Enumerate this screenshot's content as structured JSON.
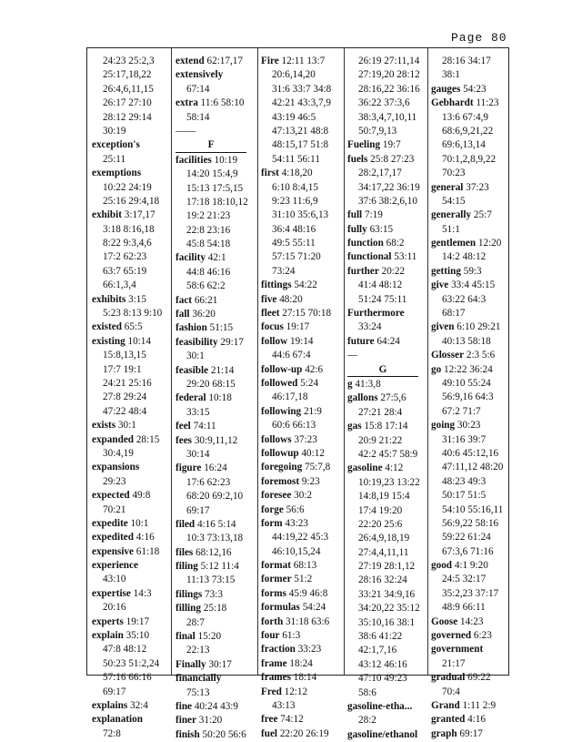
{
  "page_label": "Page 80",
  "columns": [
    [
      {
        "refs": "24:23 25:2,3"
      },
      {
        "refs": "25:17,18,22"
      },
      {
        "refs": "26:4,6,11,15"
      },
      {
        "refs": "26:17 27:10"
      },
      {
        "refs": "28:12 29:14"
      },
      {
        "refs": "30:19"
      },
      {
        "term": "exception's",
        "refs": ""
      },
      {
        "refs": "25:11"
      },
      {
        "term": "exemptions",
        "refs": ""
      },
      {
        "refs": "10:22 24:19"
      },
      {
        "refs": "25:16 29:4,18"
      },
      {
        "term": "exhibit",
        "refs": "3:17,17"
      },
      {
        "refs": "3:18 8:16,18"
      },
      {
        "refs": "8:22 9:3,4,6"
      },
      {
        "refs": "17:2 62:23"
      },
      {
        "refs": "63:7 65:19"
      },
      {
        "refs": "66:1,3,4"
      },
      {
        "term": "exhibits",
        "refs": "3:15"
      },
      {
        "refs": "5:23 8:13 9:10"
      },
      {
        "term": "existed",
        "refs": "65:5"
      },
      {
        "term": "existing",
        "refs": "10:14"
      },
      {
        "refs": "15:8,13,15"
      },
      {
        "refs": "17:7 19:1"
      },
      {
        "refs": "24:21 25:16"
      },
      {
        "refs": "27:8 29:24"
      },
      {
        "refs": "47:22 48:4"
      },
      {
        "term": "exists",
        "refs": "30:1"
      },
      {
        "term": "expanded",
        "refs": "28:15"
      },
      {
        "refs": "30:4,19"
      },
      {
        "term": "expansions",
        "refs": ""
      },
      {
        "refs": "29:23"
      },
      {
        "term": "expected",
        "refs": "49:8"
      },
      {
        "refs": "70:21"
      },
      {
        "term": "expedite",
        "refs": "10:1"
      },
      {
        "term": "expedited",
        "refs": "4:16"
      },
      {
        "term": "expensive",
        "refs": "61:18"
      },
      {
        "term": "experience",
        "refs": ""
      },
      {
        "refs": "43:10"
      },
      {
        "term": "expertise",
        "refs": "14:3"
      },
      {
        "refs": "20:16"
      },
      {
        "term": "experts",
        "refs": "19:17"
      },
      {
        "term": "explain",
        "refs": "35:10"
      },
      {
        "refs": "47:8 48:12"
      },
      {
        "refs": "50:23 51:2,24"
      },
      {
        "refs": "57:16 66:16"
      },
      {
        "refs": "69:17"
      },
      {
        "term": "explains",
        "refs": "32:4"
      },
      {
        "term": "explanation",
        "refs": ""
      },
      {
        "refs": "72:8"
      }
    ],
    [
      {
        "term": "extend",
        "refs": "62:17,17"
      },
      {
        "term": "extensively",
        "refs": ""
      },
      {
        "refs": "67:14"
      },
      {
        "term": "extra",
        "refs": "11:6 58:10"
      },
      {
        "refs": "58:14"
      },
      {
        "rule": "——"
      },
      {
        "letter": "F"
      },
      {
        "term": "facilities",
        "refs": "10:19"
      },
      {
        "refs": "14:20 15:4,9"
      },
      {
        "refs": "15:13 17:5,15"
      },
      {
        "refs": "17:18 18:10,12"
      },
      {
        "refs": "19:2 21:23"
      },
      {
        "refs": "22:8 23:16"
      },
      {
        "refs": "45:8 54:18"
      },
      {
        "term": "facility",
        "refs": "42:1"
      },
      {
        "refs": "44:8 46:16"
      },
      {
        "refs": "58:6 62:2"
      },
      {
        "term": "fact",
        "refs": "66:21"
      },
      {
        "term": "fall",
        "refs": "36:20"
      },
      {
        "term": "fashion",
        "refs": "51:15"
      },
      {
        "term": "feasibility",
        "refs": "29:17"
      },
      {
        "refs": "30:1"
      },
      {
        "term": "feasible",
        "refs": "21:14"
      },
      {
        "refs": "29:20 68:15"
      },
      {
        "term": "federal",
        "refs": "10:18"
      },
      {
        "refs": "33:15"
      },
      {
        "term": "feel",
        "refs": "74:11"
      },
      {
        "term": "fees",
        "refs": "30:9,11,12"
      },
      {
        "refs": "30:14"
      },
      {
        "term": "figure",
        "refs": "16:24"
      },
      {
        "refs": "17:6 62:23"
      },
      {
        "refs": "68:20 69:2,10"
      },
      {
        "refs": "69:17"
      },
      {
        "term": "filed",
        "refs": "4:16 5:14"
      },
      {
        "refs": "10:3 73:13,18"
      },
      {
        "term": "files",
        "refs": "68:12,16"
      },
      {
        "term": "filing",
        "refs": "5:12 11:4"
      },
      {
        "refs": "11:13 73:15"
      },
      {
        "term": "filings",
        "refs": "73:3"
      },
      {
        "term": "filling",
        "refs": "25:18"
      },
      {
        "refs": "28:7"
      },
      {
        "term": "final",
        "refs": "15:20"
      },
      {
        "refs": "22:13"
      },
      {
        "term": "Finally",
        "refs": "30:17"
      },
      {
        "term": "financially",
        "refs": ""
      },
      {
        "refs": "75:13"
      },
      {
        "term": "fine",
        "refs": "40:24 43:9"
      },
      {
        "term": "finer",
        "refs": "31:20"
      },
      {
        "term": "finish",
        "refs": "50:20 56:6"
      }
    ],
    [
      {
        "term": "Fire",
        "refs": "12:11 13:7"
      },
      {
        "refs": "20:6,14,20"
      },
      {
        "refs": "31:6 33:7 34:8"
      },
      {
        "refs": "42:21 43:3,7,9"
      },
      {
        "refs": "43:19 46:5"
      },
      {
        "refs": "47:13,21 48:8"
      },
      {
        "refs": "48:15,17 51:8"
      },
      {
        "refs": "54:11 56:11"
      },
      {
        "term": "first",
        "refs": "4:18,20"
      },
      {
        "refs": "6:10 8:4,15"
      },
      {
        "refs": "9:23 11:6,9"
      },
      {
        "refs": "31:10 35:6,13"
      },
      {
        "refs": "36:4 48:16"
      },
      {
        "refs": "49:5 55:11"
      },
      {
        "refs": "57:15 71:20"
      },
      {
        "refs": "73:24"
      },
      {
        "term": "fittings",
        "refs": "54:22"
      },
      {
        "term": "five",
        "refs": "48:20"
      },
      {
        "term": "fleet",
        "refs": "27:15 70:18"
      },
      {
        "term": "focus",
        "refs": "19:17"
      },
      {
        "term": "follow",
        "refs": "19:14"
      },
      {
        "refs": "44:6 67:4"
      },
      {
        "term": "follow-up",
        "refs": "42:6"
      },
      {
        "term": "followed",
        "refs": "5:24"
      },
      {
        "refs": "46:17,18"
      },
      {
        "term": "following",
        "refs": "21:9"
      },
      {
        "refs": "60:6 66:13"
      },
      {
        "term": "follows",
        "refs": "37:23"
      },
      {
        "term": "followup",
        "refs": "40:12"
      },
      {
        "term": "foregoing",
        "refs": "75:7,8"
      },
      {
        "term": "foremost",
        "refs": "9:23"
      },
      {
        "term": "foresee",
        "refs": "30:2"
      },
      {
        "term": "forge",
        "refs": "56:6"
      },
      {
        "term": "form",
        "refs": "43:23"
      },
      {
        "refs": "44:19,22 45:3"
      },
      {
        "refs": "46:10,15,24"
      },
      {
        "term": "format",
        "refs": "68:13"
      },
      {
        "term": "former",
        "refs": "51:2"
      },
      {
        "term": "forms",
        "refs": "45:9 46:8"
      },
      {
        "term": "formulas",
        "refs": "54:24"
      },
      {
        "term": "forth",
        "refs": "31:18 63:6"
      },
      {
        "term": "four",
        "refs": "61:3"
      },
      {
        "term": "fraction",
        "refs": "33:23"
      },
      {
        "term": "frame",
        "refs": "18:24"
      },
      {
        "term": "frames",
        "refs": "18:14"
      },
      {
        "term": "Fred",
        "refs": "12:12"
      },
      {
        "refs": "43:13"
      },
      {
        "term": "free",
        "refs": "74:12"
      },
      {
        "term": "fuel",
        "refs": "22:20 26:19"
      }
    ],
    [
      {
        "refs": "26:19 27:11,14"
      },
      {
        "refs": "27:19,20 28:12"
      },
      {
        "refs": "28:16,22 36:16"
      },
      {
        "refs": "36:22 37:3,6"
      },
      {
        "refs": "38:3,4,7,10,11"
      },
      {
        "refs": "50:7,9,13"
      },
      {
        "term": "Fueling",
        "refs": "19:7"
      },
      {
        "term": "fuels",
        "refs": "25:8 27:23"
      },
      {
        "refs": "28:2,17,17"
      },
      {
        "refs": "34:17,22 36:19"
      },
      {
        "refs": "37:6 38:2,6,10"
      },
      {
        "term": "full",
        "refs": "7:19"
      },
      {
        "term": "fully",
        "refs": "63:15"
      },
      {
        "term": "function",
        "refs": "68:2"
      },
      {
        "term": "functional",
        "refs": "53:11"
      },
      {
        "term": "further",
        "refs": "20:22"
      },
      {
        "refs": "41:4 48:12"
      },
      {
        "refs": "51:24 75:11"
      },
      {
        "term": "Furthermore",
        "refs": ""
      },
      {
        "refs": "33:24"
      },
      {
        "term": "future",
        "refs": "64:24"
      },
      {
        "rule": "—"
      },
      {
        "letter": "G"
      },
      {
        "term": "g",
        "refs": "41:3,8"
      },
      {
        "term": "gallons",
        "refs": "27:5,6"
      },
      {
        "refs": "27:21 28:4"
      },
      {
        "term": "gas",
        "refs": "15:8 17:14"
      },
      {
        "refs": "20:9 21:22"
      },
      {
        "refs": "42:2 45:7 58:9"
      },
      {
        "term": "gasoline",
        "refs": "4:12"
      },
      {
        "refs": "10:19,23 13:22"
      },
      {
        "refs": "14:8,19 15:4"
      },
      {
        "refs": "17:4 19:20"
      },
      {
        "refs": "22:20 25:6"
      },
      {
        "refs": "26:4,9,18,19"
      },
      {
        "refs": "27:4,4,11,11"
      },
      {
        "refs": "27:19 28:1,12"
      },
      {
        "refs": "28:16 32:24"
      },
      {
        "refs": "33:21 34:9,16"
      },
      {
        "refs": "34:20,22 35:12"
      },
      {
        "refs": "35:10,16 38:1"
      },
      {
        "refs": "38:6 41:22"
      },
      {
        "refs": "42:1,7,16"
      },
      {
        "refs": "43:12 46:16"
      },
      {
        "refs": "47:10 49:23"
      },
      {
        "refs": "58:6"
      },
      {
        "term": "gasoline-etha...",
        "refs": ""
      },
      {
        "refs": "28:2"
      },
      {
        "term": "gasoline/ethanol",
        "refs": ""
      }
    ],
    [
      {
        "refs": "28:16 34:17"
      },
      {
        "refs": "38:1"
      },
      {
        "term": "gauges",
        "refs": "54:23"
      },
      {
        "term": "Gebhardt",
        "refs": "11:23"
      },
      {
        "refs": "13:6 67:4,9"
      },
      {
        "refs": "68:6,9,21,22"
      },
      {
        "refs": "69:6,13,14"
      },
      {
        "refs": "70:1,2,8,9,22"
      },
      {
        "refs": "70:23"
      },
      {
        "term": "general",
        "refs": "37:23"
      },
      {
        "refs": "54:15"
      },
      {
        "term": "generally",
        "refs": "25:7"
      },
      {
        "refs": "51:1"
      },
      {
        "term": "gentlemen",
        "refs": "12:20"
      },
      {
        "refs": "14:2 48:12"
      },
      {
        "term": "getting",
        "refs": "59:3"
      },
      {
        "term": "give",
        "refs": "33:4 45:15"
      },
      {
        "refs": "63:22 64:3"
      },
      {
        "refs": "68:17"
      },
      {
        "term": "given",
        "refs": "6:10 29:21"
      },
      {
        "refs": "40:13 58:18"
      },
      {
        "term": "Glosser",
        "refs": "2:3 5:6"
      },
      {
        "term": "go",
        "refs": "12:22 36:24"
      },
      {
        "refs": "49:10 55:24"
      },
      {
        "refs": "56:9,16 64:3"
      },
      {
        "refs": "67:2 71:7"
      },
      {
        "term": "going",
        "refs": "30:23"
      },
      {
        "refs": "31:16 39:7"
      },
      {
        "refs": "40:6 45:12,16"
      },
      {
        "refs": "47:11,12 48:20"
      },
      {
        "refs": "48:23 49:3"
      },
      {
        "refs": "50:17 51:5"
      },
      {
        "refs": "54:10 55:16,11"
      },
      {
        "refs": "56:9,22 58:16"
      },
      {
        "refs": "59:22 61:24"
      },
      {
        "refs": "67:3,6 71:16"
      },
      {
        "term": "good",
        "refs": "4:1 9:20"
      },
      {
        "refs": "24:5 32:17"
      },
      {
        "refs": "35:2,23 37:17"
      },
      {
        "refs": "48:9 66:11"
      },
      {
        "term": "Goose",
        "refs": "14:23"
      },
      {
        "term": "governed",
        "refs": "6:23"
      },
      {
        "term": "government",
        "refs": ""
      },
      {
        "refs": "21:17"
      },
      {
        "term": "gradual",
        "refs": "69:22"
      },
      {
        "refs": "70:4"
      },
      {
        "term": "Grand",
        "refs": "1:11 2:9"
      },
      {
        "term": "granted",
        "refs": "4:16"
      },
      {
        "term": "graph",
        "refs": "69:17"
      }
    ]
  ]
}
